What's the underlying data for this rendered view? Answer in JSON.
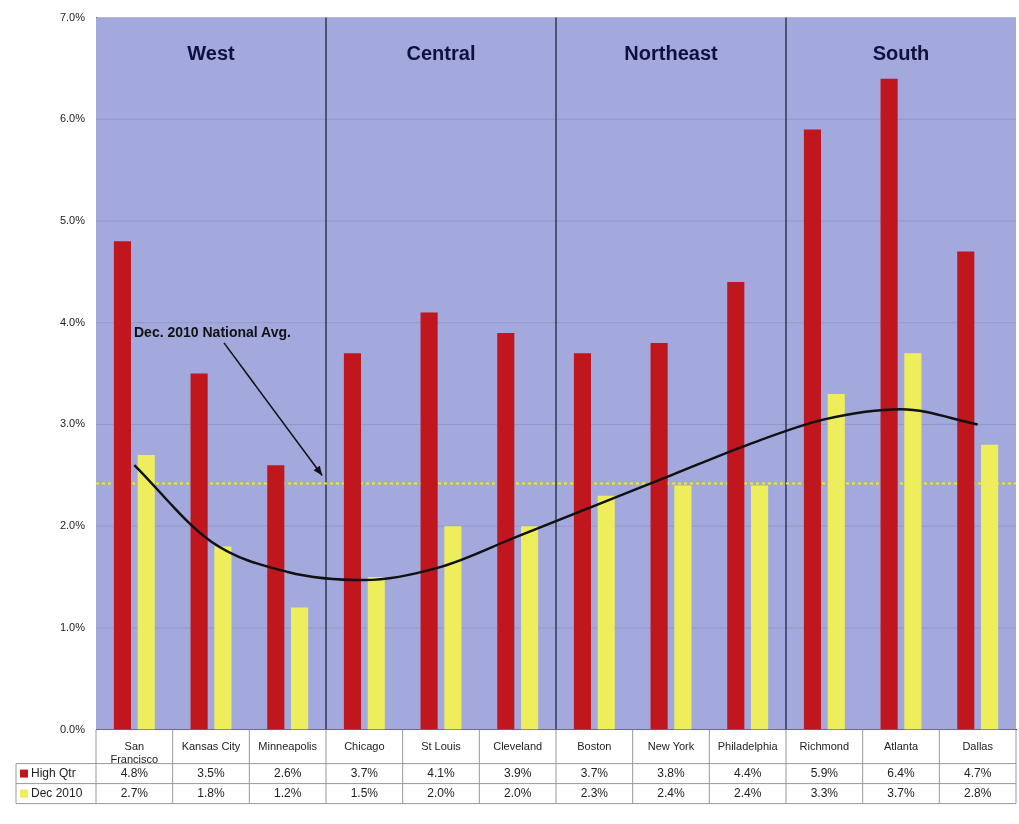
{
  "chart_data": {
    "type": "bar",
    "categories": [
      "San Francisco",
      "Kansas City",
      "Minneapolis",
      "Chicago",
      "St Louis",
      "Cleveland",
      "Boston",
      "New York",
      "Philadelphia",
      "Richmond",
      "Atlanta",
      "Dallas"
    ],
    "series": [
      {
        "name": "High Qtr",
        "color": "#c0161e",
        "values": [
          4.8,
          3.5,
          2.6,
          3.7,
          4.1,
          3.9,
          3.7,
          3.8,
          4.4,
          5.9,
          6.4,
          4.7
        ],
        "value_labels": [
          "4.8%",
          "3.5%",
          "2.6%",
          "3.7%",
          "4.1%",
          "3.9%",
          "3.7%",
          "3.8%",
          "4.4%",
          "5.9%",
          "6.4%",
          "4.7%"
        ]
      },
      {
        "name": "Dec 2010",
        "color": "#eeee5c",
        "values": [
          2.7,
          1.8,
          1.2,
          1.5,
          2.0,
          2.0,
          2.3,
          2.4,
          2.4,
          3.3,
          3.7,
          2.8
        ],
        "value_labels": [
          "2.7%",
          "1.8%",
          "1.2%",
          "1.5%",
          "2.0%",
          "2.0%",
          "2.3%",
          "2.4%",
          "2.4%",
          "3.3%",
          "3.7%",
          "2.8%"
        ]
      },
      {
        "type": "line",
        "color": "#111111",
        "values": [
          2.6,
          1.85,
          1.55,
          1.47,
          1.6,
          1.9,
          2.2,
          2.5,
          2.8,
          3.05,
          3.15,
          3.0
        ]
      }
    ],
    "ylim": [
      0,
      7
    ],
    "yticks": [
      {
        "value": 0,
        "label": "0.0%"
      },
      {
        "value": 1,
        "label": "1.0%"
      },
      {
        "value": 2,
        "label": "2.0%"
      },
      {
        "value": 3,
        "label": "3.0%"
      },
      {
        "value": 4,
        "label": "4.0%"
      },
      {
        "value": 5,
        "label": "5.0%"
      },
      {
        "value": 6,
        "label": "6.0%"
      },
      {
        "value": 7,
        "label": "7.0%"
      }
    ],
    "grid": "y",
    "legend": "bottom",
    "ref_lines": [
      {
        "axis": "y",
        "value": 2.42,
        "label": "Dec. 2010 National Avg.",
        "color": "#f2f200",
        "line_style": "dotted"
      }
    ],
    "annotations": [
      "West",
      "Central",
      "Northeast",
      "South"
    ]
  }
}
